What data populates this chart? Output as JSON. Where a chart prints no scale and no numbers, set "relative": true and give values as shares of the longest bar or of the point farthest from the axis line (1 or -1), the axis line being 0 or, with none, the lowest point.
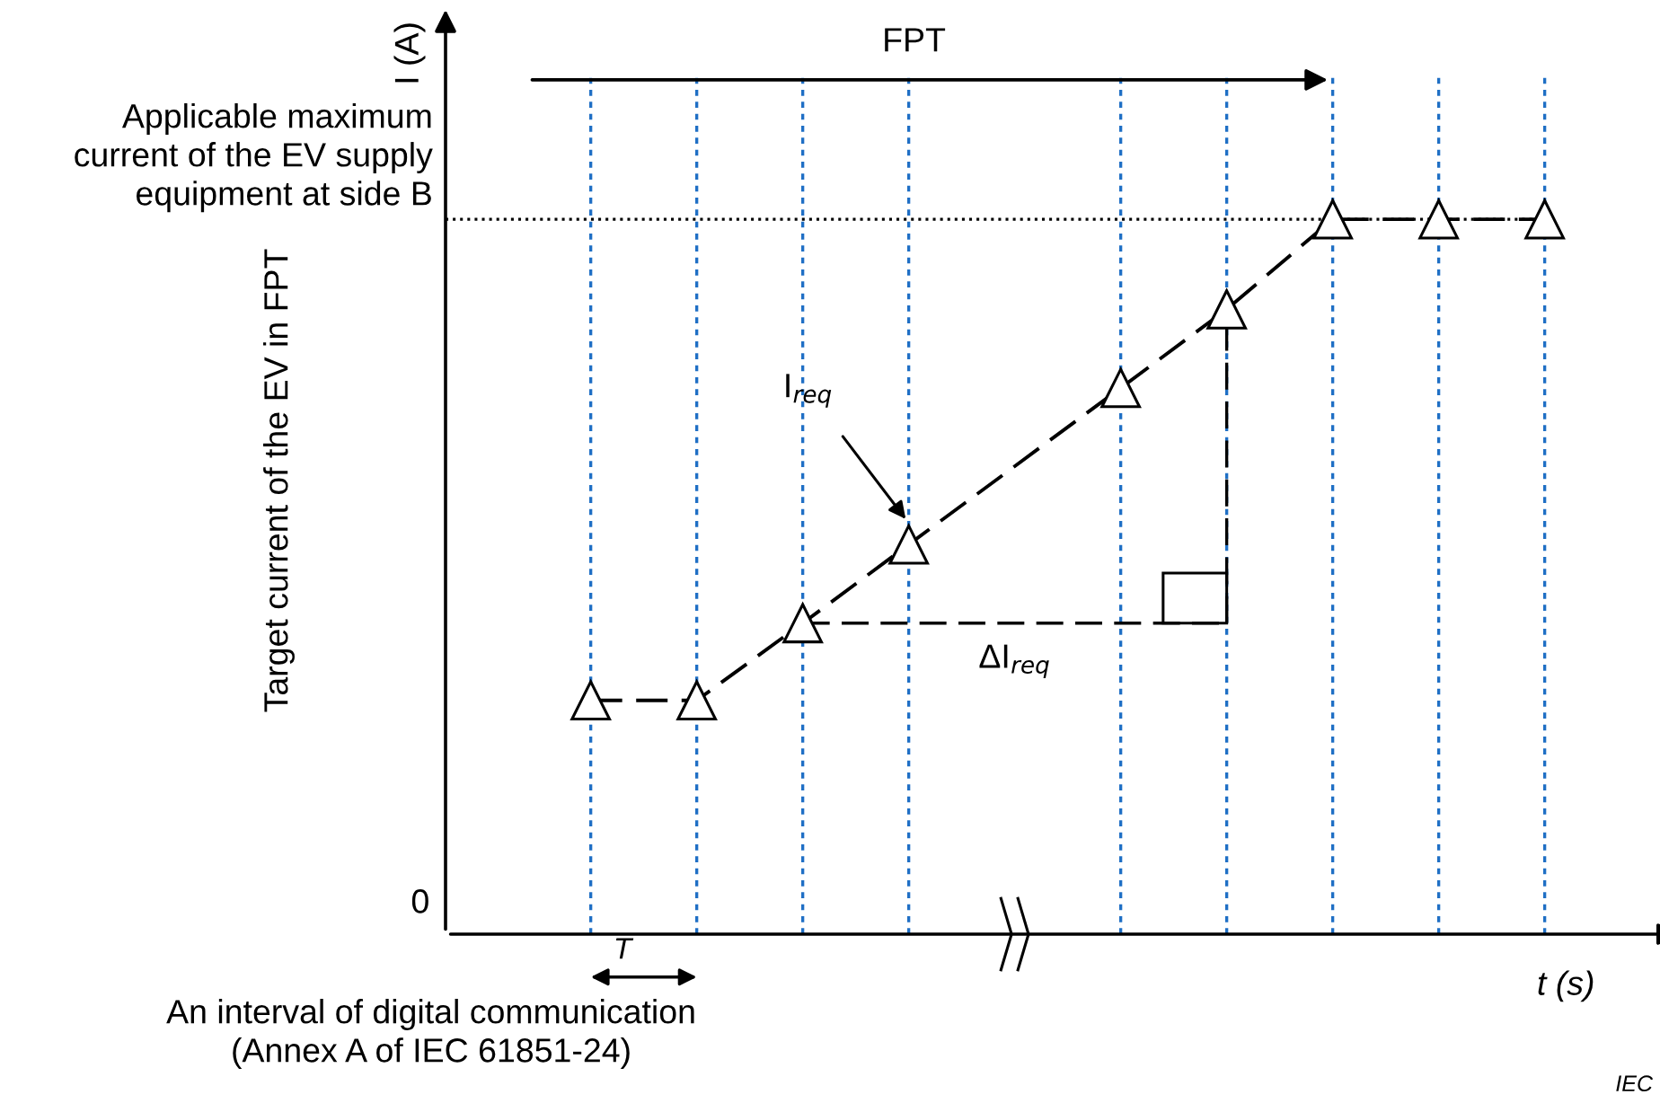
{
  "chart_data": {
    "type": "line",
    "relative": true,
    "ylabel": "Target current of the EV in FPT",
    "xlabel": "t (s)",
    "categories": [
      null,
      null,
      null,
      null,
      null,
      null,
      null,
      null,
      null,
      null
    ],
    "series": [
      {
        "color": "#000000",
        "values": [
          0.327,
          0.327,
          0.435,
          0.545,
          null,
          0.764,
          0.874,
          1,
          1,
          1
        ]
      }
    ],
    "marker": "triangle",
    "line_style": "dashed",
    "grid": "x",
    "legend": false,
    "ref_lines": [
      {
        "axis": "y",
        "value": 1,
        "label": "Applicable maximum\ncurrent of the EV supply\nequipment at side B",
        "line_style": "dotted",
        "color": "#000000"
      }
    ],
    "annotations": [
      "FPT",
      "I$_{req}$",
      "ΔI$_{req}$",
      "T",
      "An interval of digital communication\n(Annex A of IEC 61851-24)",
      "0",
      "I (A)",
      "IEC"
    ]
  }
}
